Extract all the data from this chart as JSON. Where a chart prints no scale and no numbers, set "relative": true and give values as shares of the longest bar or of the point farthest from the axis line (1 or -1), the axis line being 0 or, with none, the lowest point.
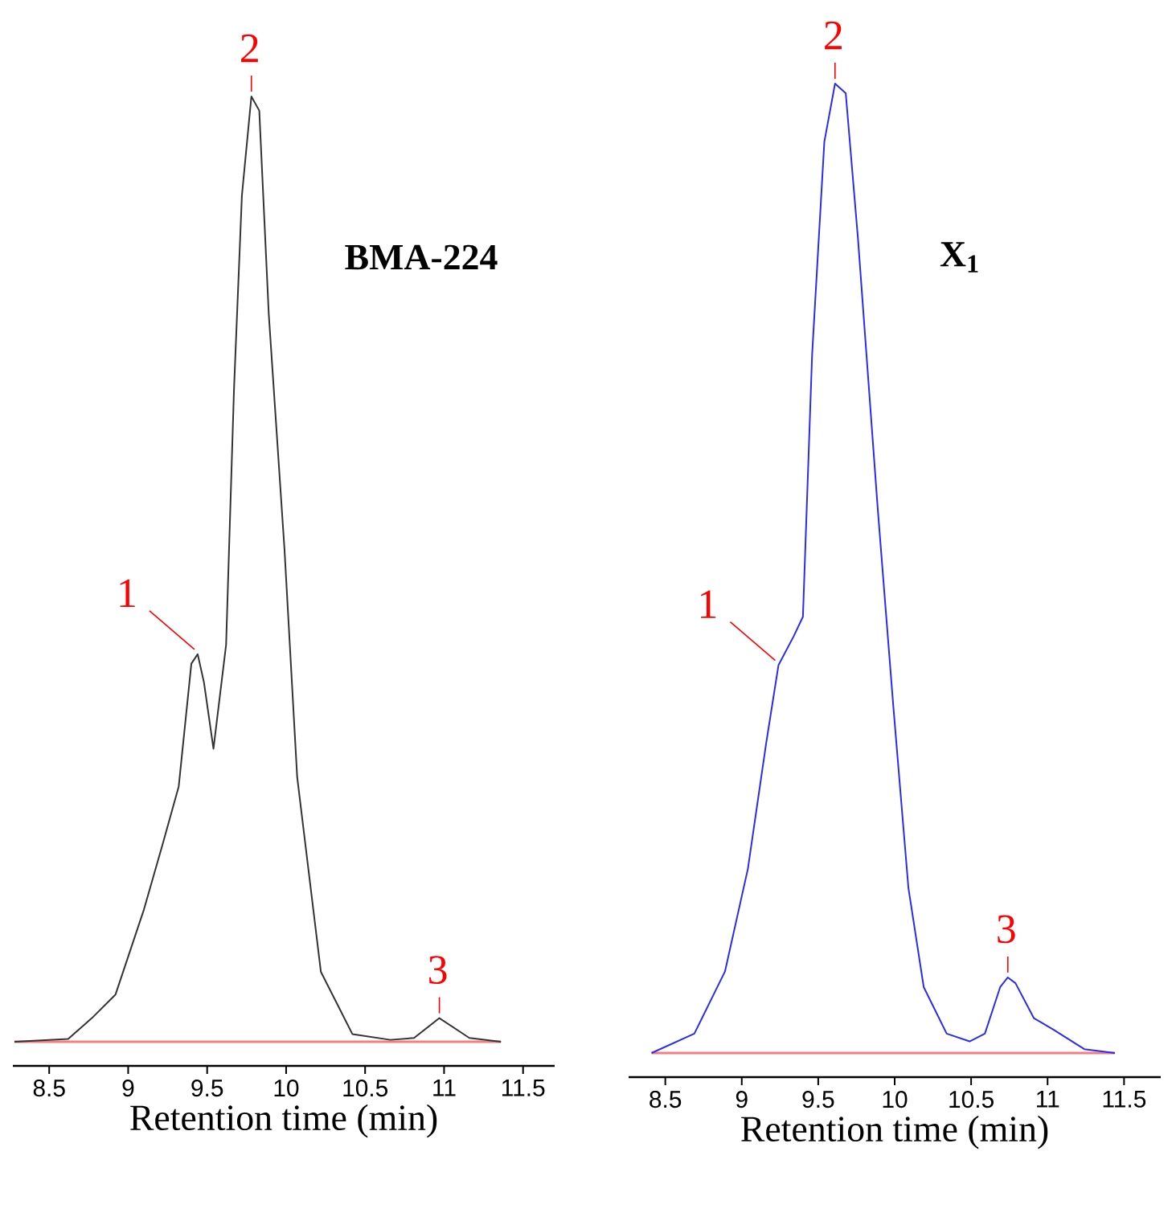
{
  "chart_data": [
    {
      "type": "line",
      "title": "BMA-224",
      "xlabel": "Retention time (min)",
      "relative": true,
      "grid": false,
      "marker": "none",
      "line_style": "solid",
      "x": [
        8.28,
        8.62,
        8.77,
        8.92,
        9.1,
        9.22,
        9.32,
        9.4,
        9.44,
        9.48,
        9.54,
        9.62,
        9.67,
        9.72,
        9.78,
        9.83,
        9.89,
        9.99,
        10.07,
        10.22,
        10.42,
        10.66,
        10.81,
        10.97,
        11.16,
        11.36
      ],
      "series": [
        {
          "color": "#333333",
          "values": [
            0,
            0.003,
            0.025,
            0.05,
            0.14,
            0.21,
            0.27,
            0.4,
            0.41,
            0.38,
            0.31,
            0.42,
            0.69,
            0.895,
            1.0,
            0.985,
            0.77,
            0.52,
            0.28,
            0.074,
            0.008,
            0.002,
            0.004,
            0.025,
            0.004,
            0
          ]
        }
      ],
      "xlim": [
        8.27,
        11.7
      ],
      "xticks": [
        8.5,
        9,
        9.5,
        10,
        10.5,
        11,
        11.5
      ],
      "ref_lines": [
        {
          "axis": "y",
          "value": 0,
          "color": "#f08080"
        }
      ],
      "annotations": [
        {
          "text": "1",
          "x": 9.44,
          "y": 0.41
        },
        {
          "text": "2",
          "x": 9.78,
          "y": 1.0
        },
        {
          "text": "3",
          "x": 10.97,
          "y": 0.025
        }
      ]
    },
    {
      "type": "line",
      "title": "X$_{1}$",
      "xlabel": "Retention time (min)",
      "relative": true,
      "grid": false,
      "marker": "none",
      "line_style": "solid",
      "x": [
        8.41,
        8.69,
        8.89,
        9.04,
        9.16,
        9.24,
        9.34,
        9.4,
        9.46,
        9.54,
        9.61,
        9.68,
        9.76,
        9.89,
        9.99,
        10.09,
        10.19,
        10.34,
        10.49,
        10.59,
        10.69,
        10.74,
        10.79,
        10.91,
        11.04,
        11.24,
        11.44
      ],
      "series": [
        {
          "color": "#2b2bf0",
          "values": [
            0,
            0.02,
            0.084,
            0.19,
            0.32,
            0.4,
            0.43,
            0.45,
            0.72,
            0.94,
            1.0,
            0.99,
            0.84,
            0.56,
            0.36,
            0.17,
            0.068,
            0.02,
            0.012,
            0.02,
            0.068,
            0.078,
            0.072,
            0.036,
            0.024,
            0.004,
            0
          ]
        }
      ],
      "xlim": [
        8.26,
        11.74
      ],
      "xticks": [
        8.5,
        9,
        9.5,
        10,
        10.5,
        11,
        11.5
      ],
      "ref_lines": [
        {
          "axis": "y",
          "value": 0,
          "color": "#f08080"
        }
      ],
      "annotations": [
        {
          "text": "1",
          "x": 9.24,
          "y": 0.4
        },
        {
          "text": "2",
          "x": 9.61,
          "y": 1.0
        },
        {
          "text": "3",
          "x": 10.74,
          "y": 0.078
        }
      ]
    }
  ]
}
